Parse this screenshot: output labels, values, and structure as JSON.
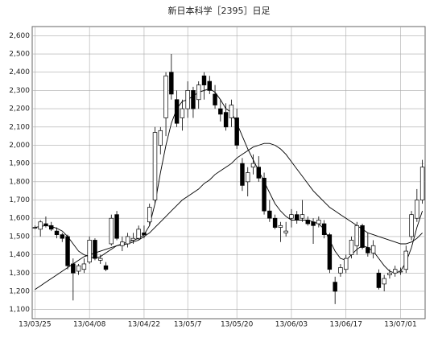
{
  "chart_data": {
    "type": "candlestick",
    "title": "新日本科学［2395］日足",
    "categories": [
      "13/03/25",
      null,
      null,
      null,
      null,
      null,
      null,
      null,
      null,
      null,
      "13/04/08",
      null,
      null,
      null,
      null,
      null,
      null,
      null,
      null,
      null,
      "13/04/22",
      null,
      null,
      null,
      null,
      null,
      null,
      null,
      "13/05/7",
      null,
      null,
      null,
      null,
      null,
      null,
      null,
      null,
      "13/05/20",
      null,
      null,
      null,
      null,
      null,
      null,
      null,
      null,
      null,
      "13/06/03",
      null,
      null,
      null,
      null,
      null,
      null,
      null,
      null,
      null,
      "13/06/17",
      null,
      null,
      null,
      null,
      null,
      null,
      null,
      null,
      null,
      "13/07/01",
      null,
      null,
      null,
      null
    ],
    "open": [
      1550,
      1540,
      1570,
      1560,
      1530,
      1510,
      1500,
      1350,
      1310,
      1320,
      1360,
      1480,
      1370,
      1340,
      1460,
      1620,
      1450,
      1460,
      1480,
      1490,
      1520,
      1580,
      1700,
      2000,
      2150,
      2400,
      2250,
      2150,
      2200,
      2300,
      2250,
      2380,
      2350,
      2280,
      2200,
      2180,
      2150,
      2150,
      1900,
      1800,
      1880,
      1880,
      1820,
      1640,
      1600,
      1550,
      1520,
      1600,
      1620,
      1600,
      1590,
      1580,
      1570,
      1570,
      1510,
      1250,
      1300,
      1320,
      1400,
      1450,
      1560,
      1440,
      1410,
      1300,
      1240,
      1290,
      1300,
      1310,
      1320,
      1500,
      1600,
      1700
    ],
    "high": [
      1560,
      1590,
      1610,
      1580,
      1550,
      1520,
      1510,
      1380,
      1350,
      1380,
      1500,
      1490,
      1400,
      1360,
      1620,
      1640,
      1500,
      1520,
      1520,
      1560,
      1560,
      1680,
      2100,
      2100,
      2400,
      2500,
      2300,
      2250,
      2350,
      2320,
      2350,
      2400,
      2380,
      2330,
      2250,
      2230,
      2250,
      2200,
      1930,
      1880,
      1950,
      1940,
      1850,
      1700,
      1620,
      1580,
      1580,
      1650,
      1640,
      1700,
      1610,
      1600,
      1610,
      1590,
      1520,
      1280,
      1350,
      1400,
      1500,
      1580,
      1570,
      1520,
      1480,
      1320,
      1290,
      1320,
      1340,
      1330,
      1450,
      1640,
      1760,
      1920
    ],
    "low": [
      1540,
      1500,
      1550,
      1530,
      1490,
      1470,
      1320,
      1150,
      1290,
      1300,
      1350,
      1370,
      1350,
      1310,
      1450,
      1480,
      1420,
      1440,
      1460,
      1480,
      1490,
      1560,
      1680,
      1950,
      2050,
      2250,
      2100,
      2080,
      2150,
      2150,
      2200,
      2250,
      2280,
      2200,
      2130,
      2080,
      2100,
      1980,
      1750,
      1720,
      1840,
      1800,
      1620,
      1580,
      1540,
      1470,
      1500,
      1550,
      1570,
      1580,
      1560,
      1460,
      1550,
      1490,
      1300,
      1130,
      1280,
      1300,
      1380,
      1400,
      1430,
      1390,
      1380,
      1210,
      1200,
      1270,
      1280,
      1290,
      1300,
      1480,
      1580,
      1680
    ],
    "close": [
      1550,
      1580,
      1560,
      1540,
      1510,
      1490,
      1340,
      1300,
      1340,
      1350,
      1480,
      1380,
      1380,
      1320,
      1600,
      1490,
      1470,
      1500,
      1490,
      1540,
      1510,
      1660,
      2070,
      2080,
      2380,
      2280,
      2120,
      2200,
      2300,
      2200,
      2330,
      2330,
      2300,
      2220,
      2170,
      2100,
      2220,
      2000,
      1780,
      1850,
      1900,
      1820,
      1640,
      1600,
      1550,
      1560,
      1530,
      1620,
      1590,
      1620,
      1570,
      1560,
      1590,
      1510,
      1320,
      1200,
      1330,
      1380,
      1480,
      1560,
      1440,
      1410,
      1450,
      1220,
      1270,
      1300,
      1320,
      1310,
      1420,
      1620,
      1700,
      1880
    ],
    "lines": [
      {
        "color": "#000000",
        "values": [
          1550,
          1555,
          1560,
          1555,
          1545,
          1530,
          1500,
          1460,
          1420,
          1400,
          1390,
          1380,
          1390,
          1410,
          1430,
          1450,
          1460,
          1470,
          1480,
          1490,
          1510,
          1560,
          1680,
          1850,
          2000,
          2120,
          2200,
          2240,
          2250,
          2270,
          2290,
          2300,
          2310,
          2290,
          2250,
          2200,
          2180,
          2120,
          2050,
          1980,
          1920,
          1860,
          1800,
          1740,
          1680,
          1640,
          1610,
          1590,
          1590,
          1590,
          1590,
          1580,
          1570,
          1540,
          1480,
          1420,
          1380,
          1370,
          1400,
          1430,
          1450,
          1440,
          1420,
          1380,
          1340,
          1310,
          1300,
          1310,
          1360,
          1440,
          1550,
          1640
        ]
      },
      {
        "color": "#000000",
        "values": [
          1210,
          1230,
          1250,
          1270,
          1290,
          1310,
          1330,
          1350,
          1370,
          1390,
          1400,
          1410,
          1420,
          1430,
          1440,
          1450,
          1455,
          1460,
          1470,
          1480,
          1500,
          1520,
          1550,
          1580,
          1610,
          1640,
          1670,
          1700,
          1720,
          1740,
          1760,
          1790,
          1810,
          1840,
          1860,
          1880,
          1900,
          1930,
          1950,
          1970,
          1990,
          2000,
          2010,
          2010,
          2000,
          1980,
          1950,
          1910,
          1870,
          1830,
          1790,
          1750,
          1720,
          1690,
          1660,
          1640,
          1620,
          1600,
          1580,
          1560,
          1540,
          1520,
          1510,
          1500,
          1490,
          1480,
          1470,
          1460,
          1460,
          1470,
          1490,
          1520
        ]
      }
    ],
    "up_color": "#ffffff",
    "down_color": "#000000",
    "ylim": [
      1050,
      2650
    ],
    "yticks": [
      {
        "value": 1100,
        "label": "1,100"
      },
      {
        "value": 1200,
        "label": "1,200"
      },
      {
        "value": 1300,
        "label": "1,300"
      },
      {
        "value": 1400,
        "label": "1,400"
      },
      {
        "value": 1500,
        "label": "1,500"
      },
      {
        "value": 1600,
        "label": "1,600"
      },
      {
        "value": 1700,
        "label": "1,700"
      },
      {
        "value": 1800,
        "label": "1,800"
      },
      {
        "value": 1900,
        "label": "1,900"
      },
      {
        "value": 2000,
        "label": "2,000"
      },
      {
        "value": 2100,
        "label": "2,100"
      },
      {
        "value": 2200,
        "label": "2,200"
      },
      {
        "value": 2300,
        "label": "2,300"
      },
      {
        "value": 2400,
        "label": "2,400"
      },
      {
        "value": 2500,
        "label": "2,500"
      },
      {
        "value": 2600,
        "label": "2,600"
      }
    ],
    "grid": true
  }
}
